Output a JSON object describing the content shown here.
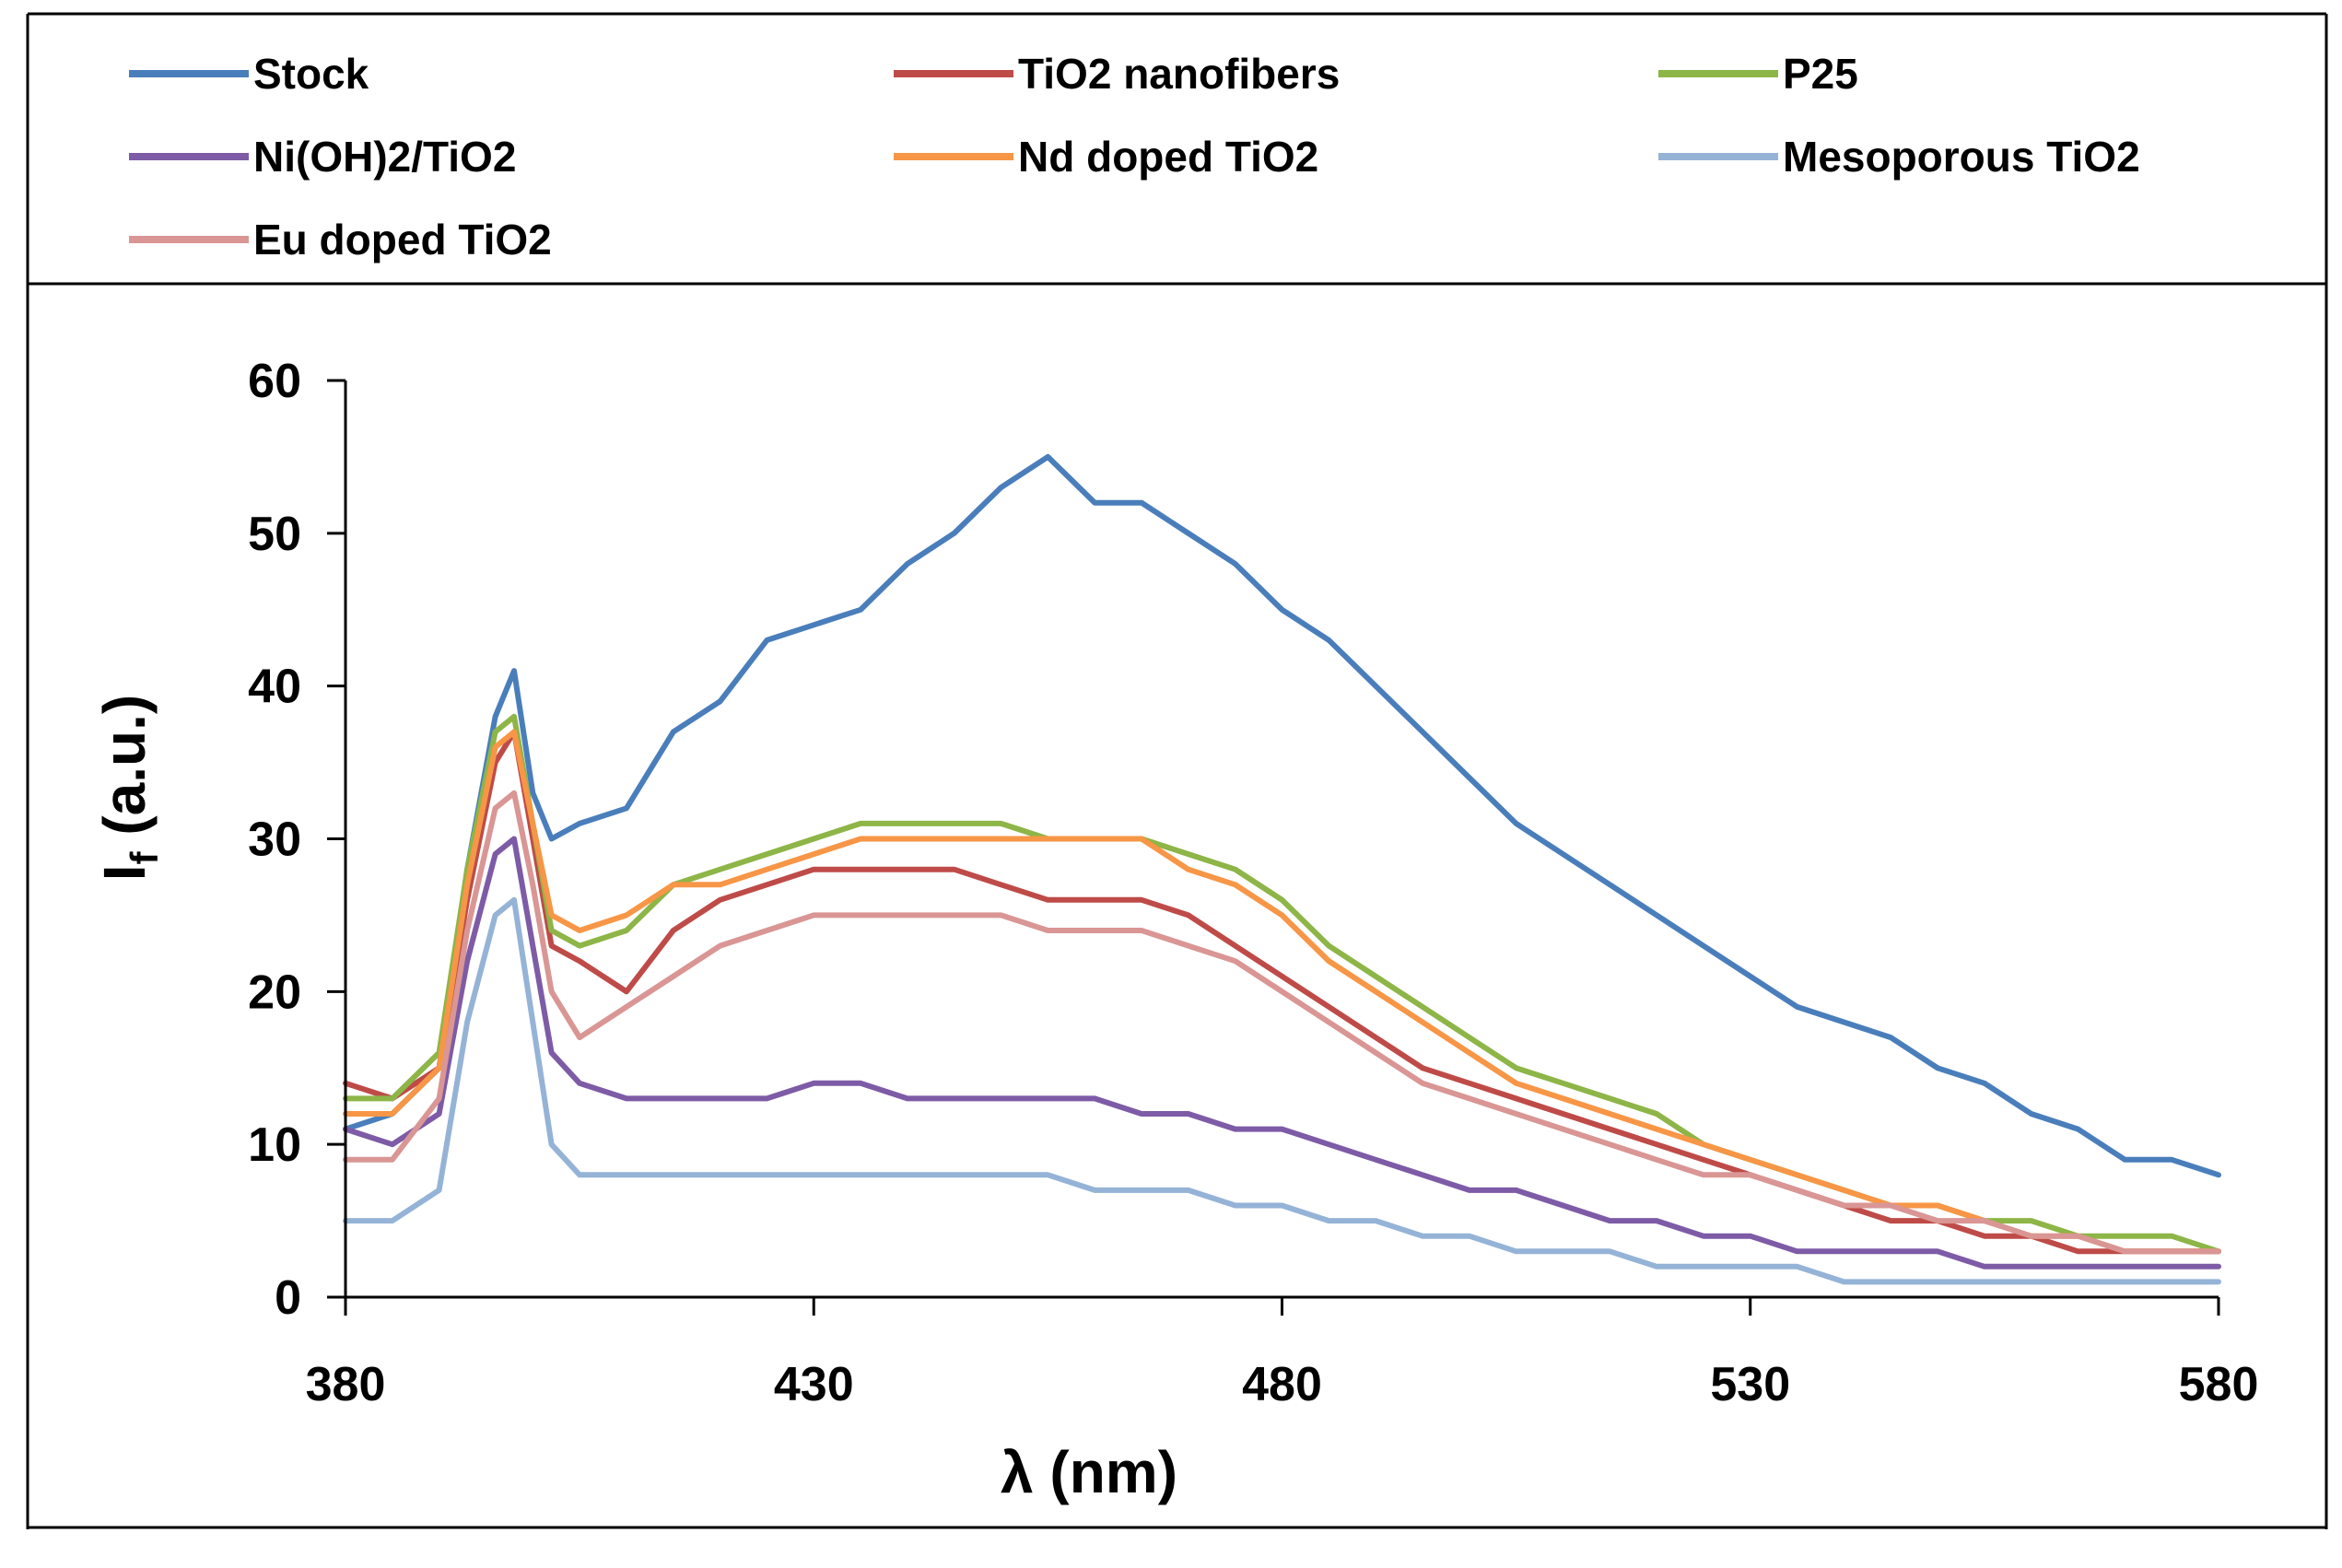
{
  "chart_data": {
    "type": "line",
    "title": "",
    "xlabel": "λ (nm)",
    "ylabel_main": "I",
    "ylabel_sub": "f",
    "ylabel_rest": " (a.u.)",
    "xlim": [
      380,
      580
    ],
    "ylim": [
      0,
      60
    ],
    "xticks": [
      380,
      430,
      480,
      530,
      580
    ],
    "yticks": [
      0,
      10,
      20,
      30,
      40,
      50,
      60
    ],
    "legend_position": "top",
    "grid": false,
    "x": [
      380,
      385,
      390,
      393,
      396,
      398,
      400,
      402,
      405,
      410,
      415,
      420,
      425,
      430,
      435,
      440,
      445,
      450,
      455,
      460,
      465,
      470,
      475,
      480,
      485,
      490,
      495,
      500,
      505,
      510,
      515,
      520,
      525,
      530,
      535,
      540,
      545,
      550,
      555,
      560,
      565,
      570,
      575,
      580
    ],
    "series": [
      {
        "name": "Stock",
        "color": "#4a7ebb",
        "values": [
          11,
          12,
          15,
          28,
          38,
          41,
          33,
          30,
          31,
          32,
          37,
          39,
          43,
          44,
          45,
          48,
          50,
          53,
          55,
          52,
          52,
          50,
          48,
          45,
          43,
          40,
          37,
          34,
          31,
          29,
          27,
          25,
          23,
          21,
          19,
          18,
          17,
          15,
          14,
          12,
          11,
          9,
          9,
          8
        ]
      },
      {
        "name": "TiO2 nanofibers",
        "color": "#be4b48",
        "values": [
          14,
          13,
          15,
          26,
          35,
          37,
          30,
          23,
          22,
          20,
          24,
          26,
          27,
          28,
          28,
          28,
          28,
          27,
          26,
          26,
          26,
          25,
          23,
          21,
          19,
          17,
          15,
          14,
          13,
          12,
          11,
          10,
          9,
          8,
          7,
          6,
          5,
          5,
          4,
          4,
          3,
          3,
          3,
          3
        ]
      },
      {
        "name": "P25",
        "color": "#8db547",
        "values": [
          13,
          13,
          16,
          28,
          37,
          38,
          31,
          24,
          23,
          24,
          27,
          28,
          29,
          30,
          31,
          31,
          31,
          31,
          30,
          30,
          30,
          29,
          28,
          26,
          23,
          21,
          19,
          17,
          15,
          14,
          13,
          12,
          10,
          9,
          8,
          7,
          6,
          6,
          5,
          5,
          4,
          4,
          4,
          3
        ]
      },
      {
        "name": "Ni(OH)2/TiO2",
        "color": "#7d5ba6",
        "values": [
          11,
          10,
          12,
          22,
          29,
          30,
          23,
          16,
          14,
          13,
          13,
          13,
          13,
          14,
          14,
          13,
          13,
          13,
          13,
          13,
          12,
          12,
          11,
          11,
          10,
          9,
          8,
          7,
          7,
          6,
          5,
          5,
          4,
          4,
          3,
          3,
          3,
          3,
          2,
          2,
          2,
          2,
          2,
          2
        ]
      },
      {
        "name": "Nd doped TiO2",
        "color": "#f79646",
        "values": [
          12,
          12,
          15,
          27,
          36,
          37,
          31,
          25,
          24,
          25,
          27,
          27,
          28,
          29,
          30,
          30,
          30,
          30,
          30,
          30,
          30,
          28,
          27,
          25,
          22,
          20,
          18,
          16,
          14,
          13,
          12,
          11,
          10,
          9,
          8,
          7,
          6,
          6,
          5,
          4,
          4,
          3,
          3,
          3
        ]
      },
      {
        "name": "Mesoporous TiO2",
        "color": "#95b3d7",
        "values": [
          5,
          5,
          7,
          18,
          25,
          26,
          18,
          10,
          8,
          8,
          8,
          8,
          8,
          8,
          8,
          8,
          8,
          8,
          8,
          7,
          7,
          7,
          6,
          6,
          5,
          5,
          4,
          4,
          3,
          3,
          3,
          2,
          2,
          2,
          2,
          1,
          1,
          1,
          1,
          1,
          1,
          1,
          1,
          1
        ]
      },
      {
        "name": "Eu doped TiO2",
        "color": "#d99694",
        "values": [
          9,
          9,
          13,
          24,
          32,
          33,
          27,
          20,
          17,
          19,
          21,
          23,
          24,
          25,
          25,
          25,
          25,
          25,
          24,
          24,
          24,
          23,
          22,
          20,
          18,
          16,
          14,
          13,
          12,
          11,
          10,
          9,
          8,
          8,
          7,
          6,
          6,
          5,
          5,
          4,
          4,
          3,
          3,
          3
        ]
      }
    ]
  }
}
